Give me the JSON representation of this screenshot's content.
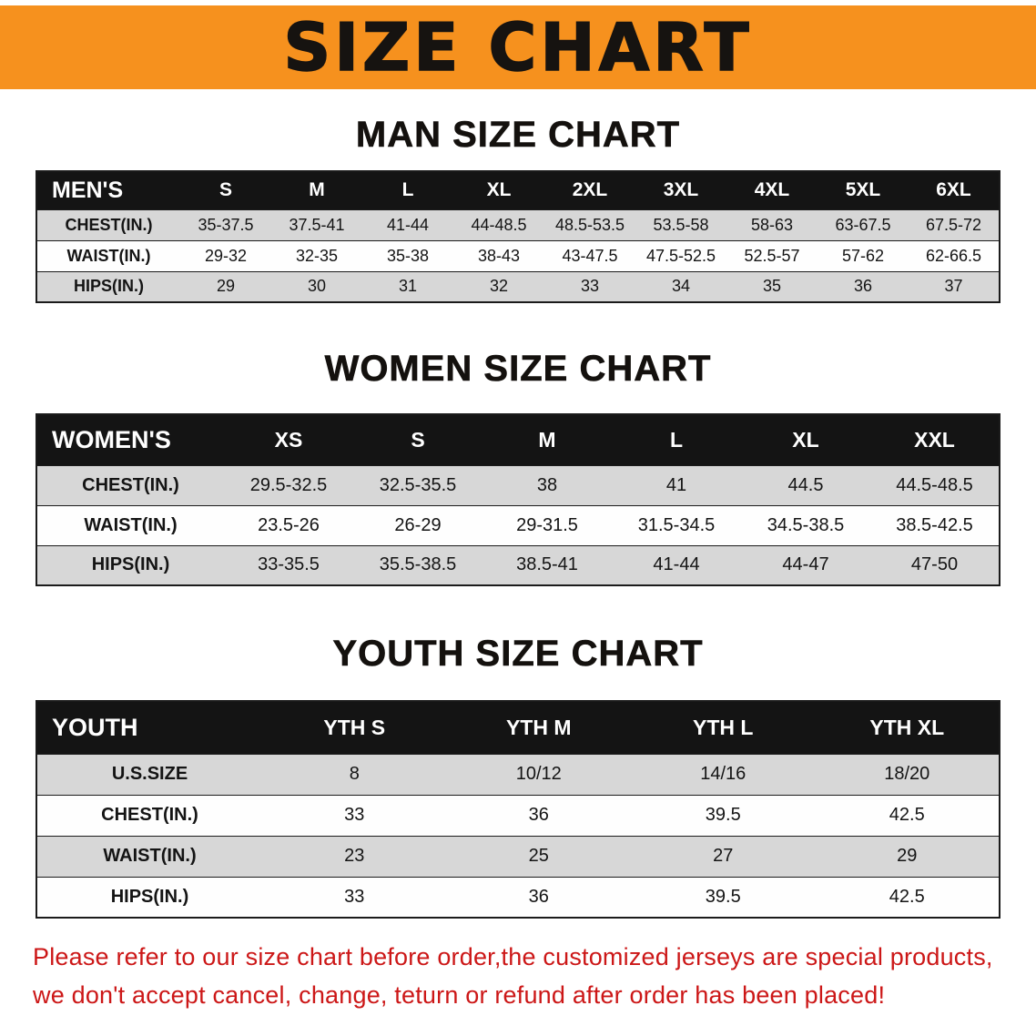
{
  "banner": {
    "title": "SIZE CHART",
    "background_color": "#f6911e",
    "text_color": "#161310"
  },
  "table_style": {
    "header_bg": "#141414",
    "header_text": "#ffffff",
    "row_shaded_bg": "#d7d7d7",
    "row_plain_bg": "#ffffff",
    "border_color": "#1b1b1b"
  },
  "sections": [
    {
      "id": "men",
      "heading": "MAN SIZE CHART",
      "table": {
        "corner_label": "MEN'S",
        "columns": [
          "S",
          "M",
          "L",
          "XL",
          "2XL",
          "3XL",
          "4XL",
          "5XL",
          "6XL"
        ],
        "rows": [
          {
            "label": "CHEST(IN.)",
            "values": [
              "35-37.5",
              "37.5-41",
              "41-44",
              "44-48.5",
              "48.5-53.5",
              "53.5-58",
              "58-63",
              "63-67.5",
              "67.5-72"
            ]
          },
          {
            "label": "WAIST(IN.)",
            "values": [
              "29-32",
              "32-35",
              "35-38",
              "38-43",
              "43-47.5",
              "47.5-52.5",
              "52.5-57",
              "57-62",
              "62-66.5"
            ]
          },
          {
            "label": "HIPS(IN.)",
            "values": [
              "29",
              "30",
              "31",
              "32",
              "33",
              "34",
              "35",
              "36",
              "37"
            ]
          }
        ]
      }
    },
    {
      "id": "women",
      "heading": "WOMEN SIZE CHART",
      "table": {
        "corner_label": "WOMEN'S",
        "columns": [
          "XS",
          "S",
          "M",
          "L",
          "XL",
          "XXL"
        ],
        "rows": [
          {
            "label": "CHEST(IN.)",
            "values": [
              "29.5-32.5",
              "32.5-35.5",
              "38",
              "41",
              "44.5",
              "44.5-48.5"
            ]
          },
          {
            "label": "WAIST(IN.)",
            "values": [
              "23.5-26",
              "26-29",
              "29-31.5",
              "31.5-34.5",
              "34.5-38.5",
              "38.5-42.5"
            ]
          },
          {
            "label": "HIPS(IN.)",
            "values": [
              "33-35.5",
              "35.5-38.5",
              "38.5-41",
              "41-44",
              "44-47",
              "47-50"
            ]
          }
        ]
      }
    },
    {
      "id": "youth",
      "heading": "YOUTH SIZE CHART",
      "table": {
        "corner_label": "YOUTH",
        "columns": [
          "YTH S",
          "YTH M",
          "YTH L",
          "YTH XL"
        ],
        "rows": [
          {
            "label": "U.S.SIZE",
            "values": [
              "8",
              "10/12",
              "14/16",
              "18/20"
            ]
          },
          {
            "label": "CHEST(IN.)",
            "values": [
              "33",
              "36",
              "39.5",
              "42.5"
            ]
          },
          {
            "label": "WAIST(IN.)",
            "values": [
              "23",
              "25",
              "27",
              "29"
            ]
          },
          {
            "label": "HIPS(IN.)",
            "values": [
              "33",
              "36",
              "39.5",
              "42.5"
            ]
          }
        ]
      }
    }
  ],
  "disclaimer": {
    "color": "#cc1717",
    "lines": [
      "Please refer to our size chart before order,the customized jerseys are special products,",
      "we don't accept cancel, change, teturn or refund after order has been placed!"
    ]
  }
}
